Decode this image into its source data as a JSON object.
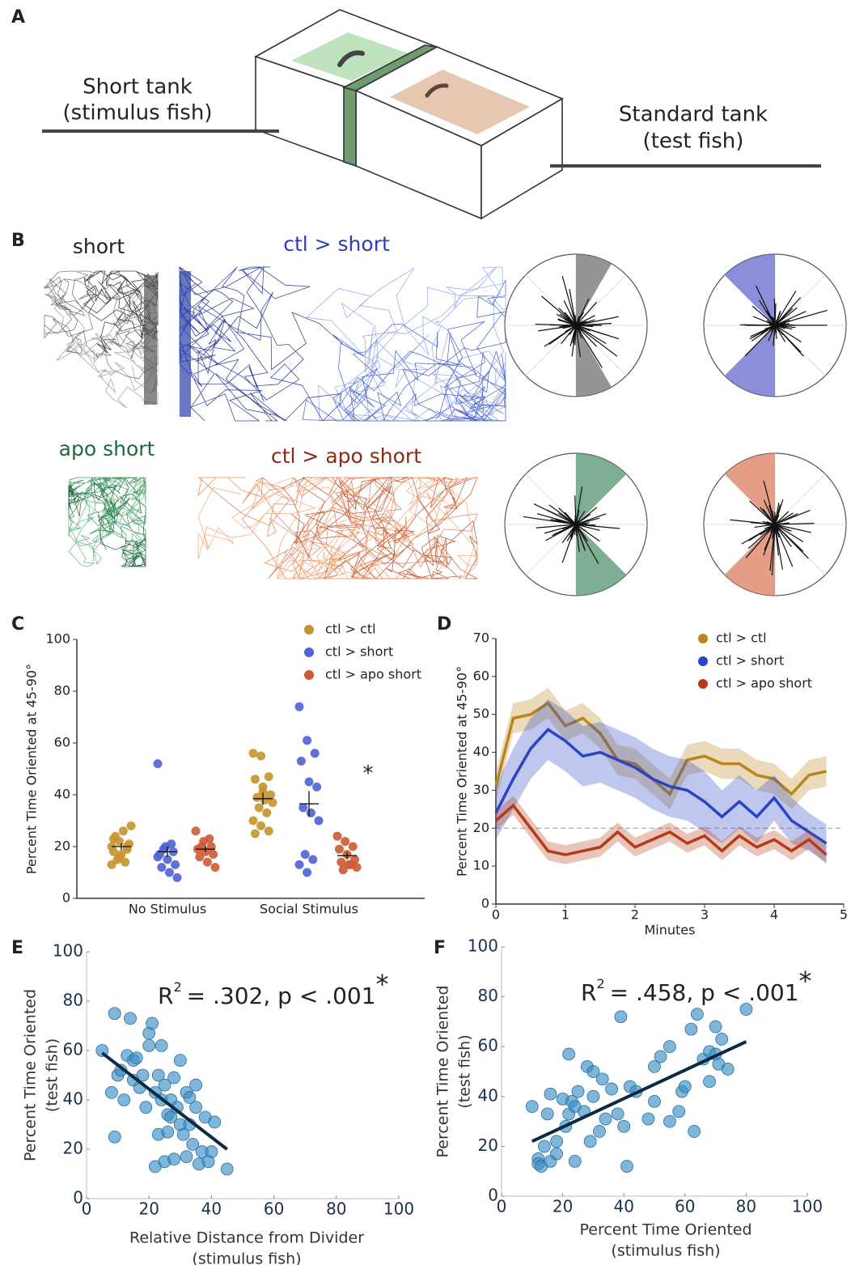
{
  "panel_labels": [
    "A",
    "B",
    "C",
    "D",
    "E",
    "F"
  ],
  "panel_a": {
    "left_label": [
      "Short tank",
      "(stimulus fish)"
    ],
    "right_label": [
      "Standard tank",
      "(test fish)"
    ]
  },
  "panel_b": {
    "labels": [
      "short",
      "ctl > short",
      "apo short",
      "ctl > apo short"
    ]
  },
  "chart_data": [
    {
      "type": "strip",
      "ylabel": "Percent Time Oriented at 45-90°",
      "categories": [
        "No Stimulus",
        "Social Stimulus"
      ],
      "ylim": [
        0,
        100
      ],
      "yticks": [
        0,
        20,
        40,
        60,
        80,
        100
      ],
      "annotation": "*",
      "series": [
        {
          "name": "ctl > ctl",
          "color": "#c4952e",
          "points": [
            [
              20,
              22,
              19,
              18,
              17,
              21,
              24,
              26,
              28,
              15,
              14,
              13,
              16,
              20,
              23
            ],
            [
              56,
              55,
              47,
              46,
              41,
              40,
              39,
              38,
              37,
              35,
              33,
              30,
              28,
              26,
              25,
              43
            ]
          ],
          "mean": [
            20,
            38.5
          ],
          "sem": [
            1.3,
            2.4
          ]
        },
        {
          "name": "ctl > short",
          "color": "#4f62d6",
          "points": [
            [
              52,
              20,
              18,
              17,
              15,
              13,
              12,
              10,
              8,
              19,
              21,
              16
            ],
            [
              74,
              61,
              56,
              53,
              45,
              43,
              35,
              33,
              30,
              17,
              15,
              13,
              10
            ]
          ],
          "mean": [
            18,
            36.5
          ],
          "sem": [
            2,
            5
          ]
        },
        {
          "name": "ctl > apo short",
          "color": "#cc5a34",
          "points": [
            [
              26,
              22,
              20,
              19,
              18,
              17,
              16,
              14,
              12,
              20,
              23
            ],
            [
              24,
              22,
              20,
              19,
              17,
              15,
              14,
              13,
              12,
              11,
              13
            ]
          ],
          "mean": [
            19,
            16.5
          ],
          "sem": [
            1.2,
            1.4
          ]
        }
      ]
    },
    {
      "type": "line",
      "ylabel": "Percent Time Oriented at 45-90°",
      "xlabel": "Minutes",
      "x": [
        0,
        0.25,
        0.5,
        0.75,
        1,
        1.25,
        1.5,
        1.75,
        2,
        2.25,
        2.5,
        2.75,
        3,
        3.25,
        3.5,
        3.75,
        4,
        4.25,
        4.5,
        4.75
      ],
      "xlim": [
        0,
        5
      ],
      "xticks": [
        0,
        1,
        2,
        3,
        4,
        5
      ],
      "ylim": [
        0,
        70
      ],
      "yticks": [
        0,
        10,
        20,
        30,
        40,
        50,
        60,
        70
      ],
      "reference_line": 20,
      "series": [
        {
          "name": "ctl > ctl",
          "color": "#b8861b",
          "values": [
            31,
            49,
            50,
            53,
            47,
            49,
            45,
            38,
            37,
            33,
            29,
            38,
            39,
            37,
            37,
            34,
            33,
            29,
            34,
            35
          ],
          "errors": [
            4,
            4,
            4,
            4,
            4,
            4,
            4,
            4,
            4,
            4,
            4,
            4,
            4,
            4,
            4,
            4,
            4,
            4,
            4,
            4
          ]
        },
        {
          "name": "ctl > short",
          "color": "#2a44c8",
          "values": [
            24,
            33,
            41,
            46,
            43,
            39,
            40,
            38,
            36,
            33,
            31,
            30,
            27,
            23,
            27,
            23,
            28,
            22,
            19,
            16
          ],
          "errors": [
            7,
            8,
            8,
            8,
            8,
            8,
            8,
            8,
            8,
            8,
            8,
            8,
            8,
            7,
            7,
            7,
            6,
            6,
            5,
            5
          ]
        },
        {
          "name": "ctl > apo short",
          "color": "#b53a18",
          "values": [
            22,
            26,
            20,
            14,
            13,
            14,
            15,
            19,
            15,
            17,
            19,
            16,
            18,
            14,
            18,
            15,
            17,
            14,
            17,
            13
          ],
          "errors": [
            2.5,
            2.5,
            2.5,
            2.5,
            2.5,
            2.5,
            2.5,
            2.5,
            2.5,
            2.5,
            2.5,
            2.5,
            2.5,
            2.5,
            2.5,
            2.5,
            2.5,
            2.5,
            2.5,
            2.5
          ]
        }
      ]
    },
    {
      "type": "scatter",
      "xlabel": [
        "Relative Distance from Divider",
        "(stimulus fish)"
      ],
      "ylabel": [
        "Percent Time Oriented",
        "(test fish)"
      ],
      "color": "#3a8fc4",
      "xlim": [
        0,
        100
      ],
      "ylim": [
        0,
        100
      ],
      "xticks": [
        0,
        20,
        40,
        60,
        80,
        100
      ],
      "yticks": [
        0,
        20,
        40,
        60,
        80,
        100
      ],
      "x": [
        5,
        9,
        9,
        8,
        10,
        11,
        12,
        13,
        14,
        15,
        15,
        16,
        17,
        18,
        19,
        20,
        20,
        21,
        22,
        22,
        23,
        23,
        24,
        24,
        25,
        25,
        26,
        26,
        27,
        27,
        28,
        28,
        29,
        30,
        30,
        31,
        32,
        32,
        33,
        33,
        34,
        35,
        35,
        36,
        37,
        38,
        40,
        41,
        45,
        39
      ],
      "y": [
        60,
        75,
        25,
        43,
        50,
        52,
        40,
        58,
        73,
        56,
        48,
        57,
        45,
        50,
        37,
        62,
        67,
        71,
        43,
        13,
        26,
        50,
        62,
        40,
        46,
        15,
        34,
        27,
        33,
        40,
        49,
        16,
        37,
        30,
        56,
        26,
        43,
        17,
        41,
        30,
        22,
        37,
        46,
        14,
        19,
        33,
        19,
        31,
        12,
        15
      ],
      "fit": {
        "x": [
          5,
          45
        ],
        "y": [
          59,
          20
        ],
        "color": "#0d2a45"
      },
      "annotation": {
        "base": "R",
        "sup": "2",
        "text": "= .302, p < .001",
        "mark": "*"
      }
    },
    {
      "type": "scatter",
      "xlabel": [
        "Percent Time Oriented",
        "(stimulus fish)"
      ],
      "ylabel": [
        "Percent Time Oriented",
        "(test fish)"
      ],
      "color": "#3a8fc4",
      "xlim": [
        0,
        100
      ],
      "ylim": [
        0,
        100
      ],
      "xticks": [
        0,
        20,
        40,
        60,
        80,
        100
      ],
      "yticks": [
        0,
        20,
        40,
        60,
        80,
        100
      ],
      "x": [
        10,
        12,
        12,
        13,
        14,
        15,
        16,
        16,
        18,
        18,
        20,
        21,
        22,
        22,
        23,
        24,
        24,
        25,
        27,
        28,
        29,
        30,
        30,
        32,
        33,
        34,
        36,
        38,
        39,
        40,
        41,
        42,
        44,
        48,
        50,
        50,
        52,
        55,
        55,
        58,
        59,
        60,
        62,
        63,
        64,
        66,
        68,
        68,
        70,
        70,
        71,
        72,
        74,
        80
      ],
      "y": [
        36,
        15,
        13,
        12,
        20,
        33,
        41,
        14,
        17,
        22,
        39,
        28,
        57,
        33,
        38,
        14,
        36,
        42,
        34,
        52,
        22,
        40,
        50,
        26,
        47,
        31,
        43,
        33,
        72,
        28,
        12,
        44,
        42,
        31,
        38,
        52,
        56,
        60,
        30,
        34,
        42,
        44,
        67,
        26,
        73,
        55,
        58,
        46,
        57,
        68,
        53,
        63,
        51,
        75
      ],
      "fit": {
        "x": [
          10,
          80
        ],
        "y": [
          22,
          62
        ],
        "color": "#0d2a45"
      },
      "annotation": {
        "base": "R",
        "sup": "2",
        "text": "= .458, p < .001",
        "mark": "*"
      }
    }
  ]
}
